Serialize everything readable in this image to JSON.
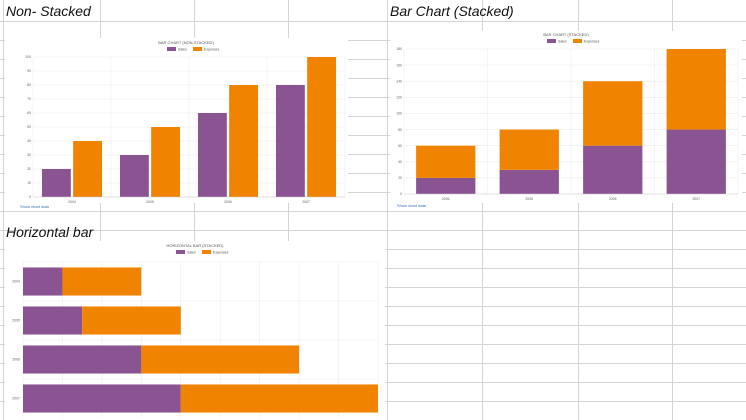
{
  "sections": {
    "top_left_title": "Non- Stacked",
    "top_right_title": "Bar Chart (Stacked)",
    "bottom_left_title": "Horizontal bar"
  },
  "links": {
    "show_chart_data": "Show chart data"
  },
  "colors": {
    "sales": "#8a5492",
    "expenses": "#f08300",
    "sheet_grid": "#d4d4d4",
    "chart_grid": "#ececec"
  },
  "chart_data": [
    {
      "type": "bar",
      "title": "BAR CHART (NON-STACKED)",
      "categories": [
        "2004",
        "2005",
        "2006",
        "2007"
      ],
      "series": [
        {
          "name": "Sales",
          "values": [
            20,
            30,
            60,
            80
          ]
        },
        {
          "name": "Expenses",
          "values": [
            40,
            50,
            80,
            100
          ]
        }
      ],
      "stacked": false,
      "ylim": [
        0,
        100
      ],
      "yticks": [
        "0",
        "10",
        "20",
        "30",
        "40",
        "50",
        "60",
        "70",
        "80",
        "90",
        "100"
      ],
      "legend": "top-center",
      "grid": true
    },
    {
      "type": "bar",
      "title": "BAR CHART (STACKED)",
      "categories": [
        "2004",
        "2005",
        "2006",
        "2007"
      ],
      "series": [
        {
          "name": "Sales",
          "values": [
            20,
            30,
            60,
            80
          ]
        },
        {
          "name": "Expenses",
          "values": [
            40,
            50,
            80,
            100
          ]
        }
      ],
      "stacked": true,
      "ylim": [
        0,
        180
      ],
      "yticks": [
        "0",
        "20",
        "40",
        "60",
        "80",
        "100",
        "120",
        "140",
        "160",
        "180"
      ],
      "legend": "top-center",
      "grid": true
    },
    {
      "type": "bar",
      "orientation": "horizontal",
      "title": "HORIZONTAL BAR (STACKED)",
      "categories": [
        "2004",
        "2005",
        "2006",
        "2007"
      ],
      "series": [
        {
          "name": "Sales",
          "values": [
            20,
            30,
            60,
            80
          ]
        },
        {
          "name": "Expenses",
          "values": [
            40,
            50,
            80,
            100
          ]
        }
      ],
      "stacked": true,
      "xlim": [
        0,
        180
      ],
      "legend": "top-center",
      "grid": true
    }
  ]
}
